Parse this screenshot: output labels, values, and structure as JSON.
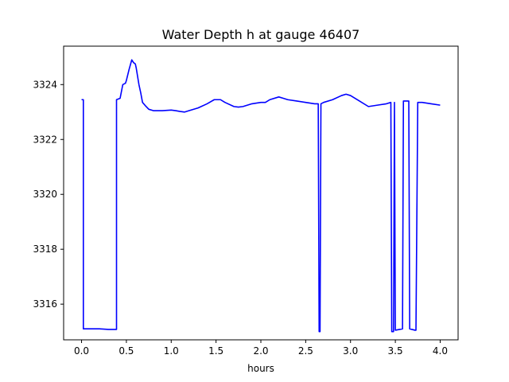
{
  "chart_data": {
    "type": "line",
    "title": "Water Depth h at gauge 46407",
    "xlabel": "hours",
    "ylabel": "",
    "xlim": [
      -0.2,
      4.2
    ],
    "ylim": [
      3314.7,
      3325.4
    ],
    "xticks": [
      0.0,
      0.5,
      1.0,
      1.5,
      2.0,
      2.5,
      3.0,
      3.5,
      4.0
    ],
    "xtick_labels": [
      "0.0",
      "0.5",
      "1.0",
      "1.5",
      "2.0",
      "2.5",
      "3.0",
      "3.5",
      "4.0"
    ],
    "yticks": [
      3316,
      3318,
      3320,
      3322,
      3324
    ],
    "ytick_labels": [
      "3316",
      "3318",
      "3320",
      "3322",
      "3324"
    ],
    "grid": false,
    "legend": "none",
    "series": [
      {
        "color": "#0000ff",
        "x": [
          0.0,
          0.02,
          0.02,
          0.1,
          0.2,
          0.3,
          0.39,
          0.39,
          0.43,
          0.46,
          0.49,
          0.5,
          0.53,
          0.56,
          0.58,
          0.6,
          0.61,
          0.64,
          0.66,
          0.68,
          0.72,
          0.75,
          0.8,
          0.9,
          1.0,
          1.05,
          1.1,
          1.15,
          1.2,
          1.3,
          1.4,
          1.48,
          1.55,
          1.6,
          1.7,
          1.75,
          1.8,
          1.9,
          2.0,
          2.05,
          2.1,
          2.2,
          2.25,
          2.3,
          2.4,
          2.5,
          2.6,
          2.64,
          2.65,
          2.66,
          2.67,
          2.7,
          2.8,
          2.9,
          2.95,
          3.0,
          3.1,
          3.2,
          3.3,
          3.4,
          3.45,
          3.46,
          3.48,
          3.49,
          3.5,
          3.58,
          3.59,
          3.6,
          3.65,
          3.66,
          3.72,
          3.73,
          3.75,
          3.76,
          3.8,
          3.9,
          4.0
        ],
        "y": [
          3323.45,
          3323.45,
          3315.1,
          3315.1,
          3315.1,
          3315.08,
          3315.08,
          3323.45,
          3323.5,
          3324.0,
          3324.05,
          3324.15,
          3324.55,
          3324.9,
          3324.8,
          3324.75,
          3324.6,
          3324.0,
          3323.7,
          3323.35,
          3323.2,
          3323.1,
          3323.05,
          3323.05,
          3323.07,
          3323.05,
          3323.02,
          3323.0,
          3323.05,
          3323.15,
          3323.3,
          3323.45,
          3323.45,
          3323.35,
          3323.2,
          3323.18,
          3323.2,
          3323.3,
          3323.35,
          3323.35,
          3323.45,
          3323.55,
          3323.5,
          3323.45,
          3323.4,
          3323.35,
          3323.3,
          3323.3,
          3315.0,
          3315.0,
          3323.3,
          3323.35,
          3323.45,
          3323.6,
          3323.65,
          3323.6,
          3323.4,
          3323.2,
          3323.25,
          3323.3,
          3323.35,
          3315.0,
          3315.0,
          3323.35,
          3315.05,
          3315.1,
          3323.4,
          3323.4,
          3323.4,
          3315.1,
          3315.05,
          3315.05,
          3323.35,
          3323.35,
          3323.35,
          3323.3,
          3323.25
        ]
      }
    ]
  }
}
